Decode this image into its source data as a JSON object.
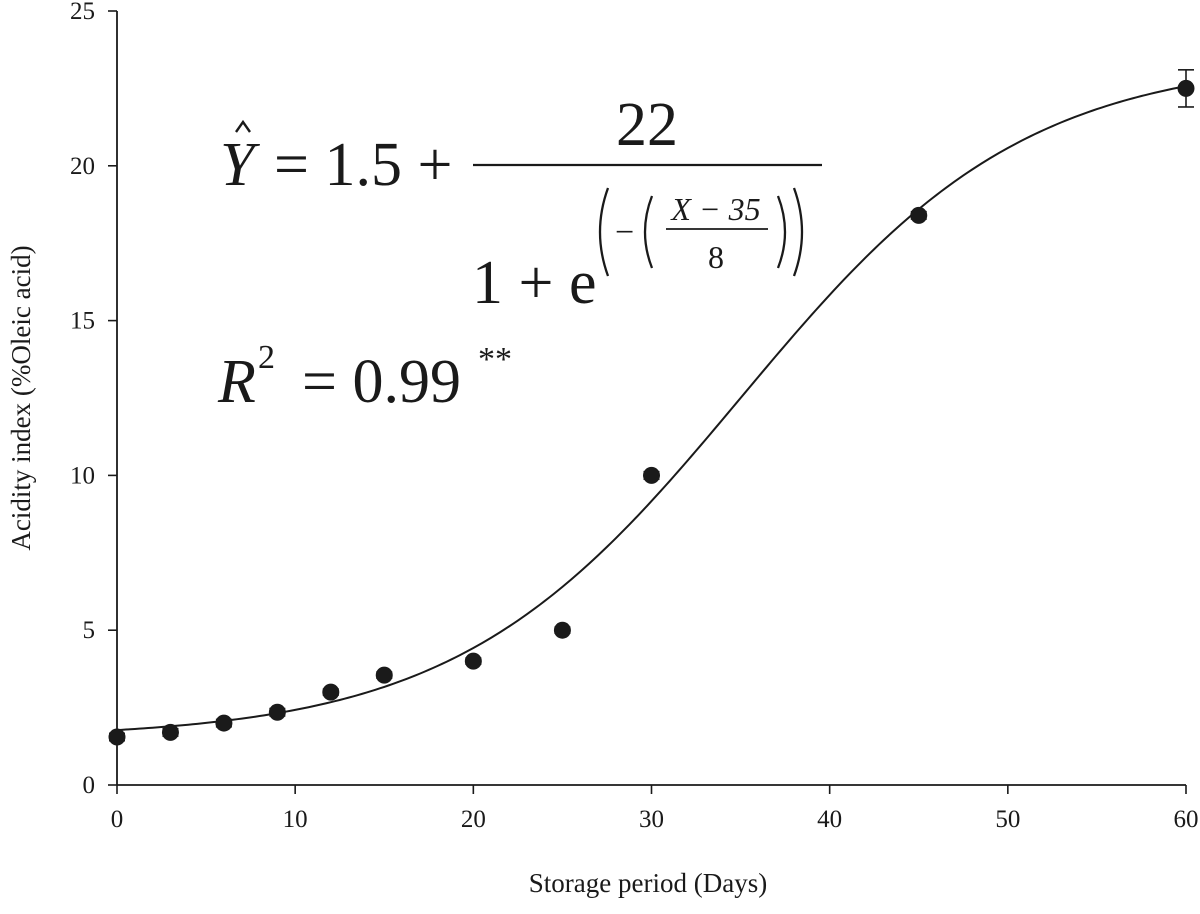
{
  "chart_data": {
    "type": "scatter",
    "xlabel": "Storage period (Days)",
    "ylabel": "Acidity index (%Oleic acid)",
    "xlim": [
      0,
      60
    ],
    "ylim": [
      0,
      25
    ],
    "xticks": [
      "0",
      "10",
      "20",
      "30",
      "40",
      "50",
      "60"
    ],
    "yticks": [
      "0",
      "5",
      "10",
      "15",
      "20",
      "25"
    ],
    "grid": false,
    "legend": "none",
    "series": [
      {
        "points": [
          {
            "x": 0,
            "y": 1.55,
            "err": 0.12
          },
          {
            "x": 3,
            "y": 1.7,
            "err": 0.12
          },
          {
            "x": 6,
            "y": 2.0,
            "err": 0.12
          },
          {
            "x": 9,
            "y": 2.35,
            "err": 0.12
          },
          {
            "x": 12,
            "y": 3.0,
            "err": 0.1
          },
          {
            "x": 15,
            "y": 3.55,
            "err": 0.1
          },
          {
            "x": 20,
            "y": 4.0,
            "err": 0.1
          },
          {
            "x": 25,
            "y": 5.0,
            "err": 0.08
          },
          {
            "x": 30,
            "y": 10.0,
            "err": 0.12
          },
          {
            "x": 45,
            "y": 18.4,
            "err": 0.12
          },
          {
            "x": 60,
            "y": 22.5,
            "err": 0.6
          }
        ]
      }
    ],
    "fit": {
      "type": "sigmoid",
      "a": 1.5,
      "b": 22,
      "x0": 35,
      "k": 8,
      "equation": {
        "yhat": "Y",
        "lhs_eq": "= 1.5 +",
        "numerator": "22",
        "denom_base": "1 + e",
        "exp_minus": "−",
        "exp_num": "X − 35",
        "exp_den": "8"
      },
      "r2": {
        "symbol": "R",
        "power": "2",
        "value": "= 0.99",
        "significance": "**"
      }
    }
  }
}
